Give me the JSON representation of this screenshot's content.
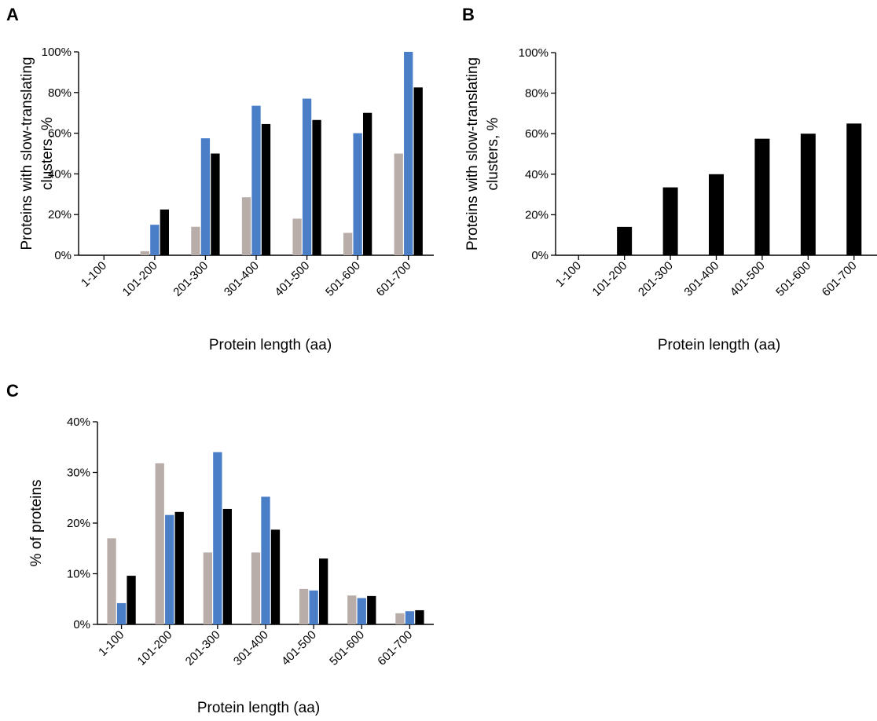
{
  "colors": {
    "series_gray": "#b8ada9",
    "series_blue": "#4a7ec6",
    "series_black": "#000000",
    "axis": "#000000"
  },
  "chart_data": [
    {
      "panel": "A",
      "type": "bar",
      "categories": [
        "1-100",
        "101-200",
        "201-300",
        "301-400",
        "401-500",
        "501-600",
        "601-700"
      ],
      "series": [
        {
          "values": [
            0,
            2,
            14,
            28.5,
            18,
            11,
            50
          ],
          "color": "#b8ada9"
        },
        {
          "values": [
            0,
            15,
            57.5,
            73.5,
            77,
            60,
            100
          ],
          "color": "#4a7ec6"
        },
        {
          "values": [
            0,
            22.5,
            50,
            64.5,
            66.5,
            70,
            82.5
          ],
          "color": "#000000"
        }
      ],
      "yticks": [
        "0%",
        "20%",
        "40%",
        "60%",
        "80%",
        "100%"
      ],
      "ylim": [
        0,
        100
      ],
      "xlabel": "Protein length (aa)",
      "ylabel": [
        "Proteins with slow-translating",
        "clusters, %"
      ],
      "grid": false,
      "legend": "none"
    },
    {
      "panel": "B",
      "type": "bar",
      "categories": [
        "1-100",
        "101-200",
        "201-300",
        "301-400",
        "401-500",
        "501-600",
        "601-700"
      ],
      "series": [
        {
          "values": [
            0,
            14,
            33.5,
            40,
            57.5,
            60,
            65
          ],
          "color": "#000000"
        }
      ],
      "yticks": [
        "0%",
        "20%",
        "40%",
        "60%",
        "80%",
        "100%"
      ],
      "ylim": [
        0,
        100
      ],
      "xlabel": "Protein length (aa)",
      "ylabel": [
        "Proteins with slow-translating",
        "clusters, %"
      ],
      "grid": false,
      "legend": "none"
    },
    {
      "panel": "C",
      "type": "bar",
      "categories": [
        "1-100",
        "101-200",
        "201-300",
        "301-400",
        "401-500",
        "501-600",
        "601-700"
      ],
      "series": [
        {
          "values": [
            17,
            31.8,
            14.2,
            14.2,
            7,
            5.7,
            2.2
          ],
          "color": "#b8ada9"
        },
        {
          "values": [
            4.2,
            21.6,
            34,
            25.2,
            6.7,
            5.2,
            2.6
          ],
          "color": "#4a7ec6"
        },
        {
          "values": [
            9.6,
            22.2,
            22.8,
            18.7,
            13,
            5.6,
            2.8
          ],
          "color": "#000000"
        }
      ],
      "yticks": [
        "0%",
        "10%",
        "20%",
        "30%",
        "40%"
      ],
      "ylim": [
        0,
        40
      ],
      "xlabel": "Protein length (aa)",
      "ylabel": [
        "% of proteins"
      ],
      "grid": false,
      "legend": "none"
    }
  ]
}
